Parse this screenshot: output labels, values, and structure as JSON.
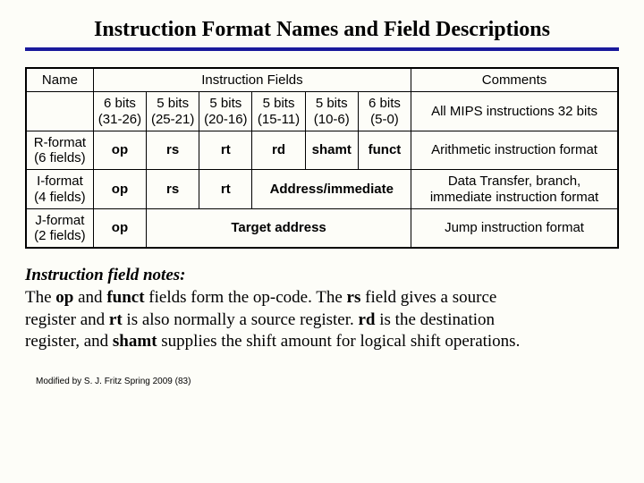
{
  "title": "Instruction Format Names and Field Descriptions",
  "header": {
    "name": "Name",
    "fields": "Instruction Fields",
    "comments": "Comments"
  },
  "bitsRow": {
    "cols": [
      "6 bits\n(31-26)",
      "5 bits\n(25-21)",
      "5 bits\n(20-16)",
      "5 bits\n(15-11)",
      "5 bits\n(10-6)",
      "6 bits\n(5-0)"
    ],
    "comment": "All MIPS instructions 32 bits"
  },
  "rformat": {
    "name": "R-format\n(6 fields)",
    "fields": [
      "op",
      "rs",
      "rt",
      "rd",
      "shamt",
      "funct"
    ],
    "comment": "Arithmetic instruction format"
  },
  "iformat": {
    "name": "I-format\n(4 fields)",
    "fields": [
      "op",
      "rs",
      "rt"
    ],
    "merged": "Address/immediate",
    "comment": "Data Transfer, branch,\nimmediate instruction format"
  },
  "jformat": {
    "name": "J-format\n(2 fields)",
    "fields": [
      "op"
    ],
    "merged": "Target address",
    "comment": "Jump instruction format"
  },
  "notes": {
    "heading": "Instruction field notes:",
    "l1a": "The ",
    "l1b": "op",
    "l1c": " and ",
    "l1d": "funct",
    "l1e": " fields form the op-code. The ",
    "l1f": "rs",
    "l1g": " field gives a source",
    "l2a": "register and ",
    "l2b": "rt",
    "l2c": " is also normally a source register. ",
    "l2d": "rd",
    "l2e": " is the destination",
    "l3a": "register, and ",
    "l3b": "shamt",
    "l3c": " supplies the shift amount for logical shift operations."
  },
  "footer": "Modified by S. J. Fritz  Spring 2009 (83)"
}
